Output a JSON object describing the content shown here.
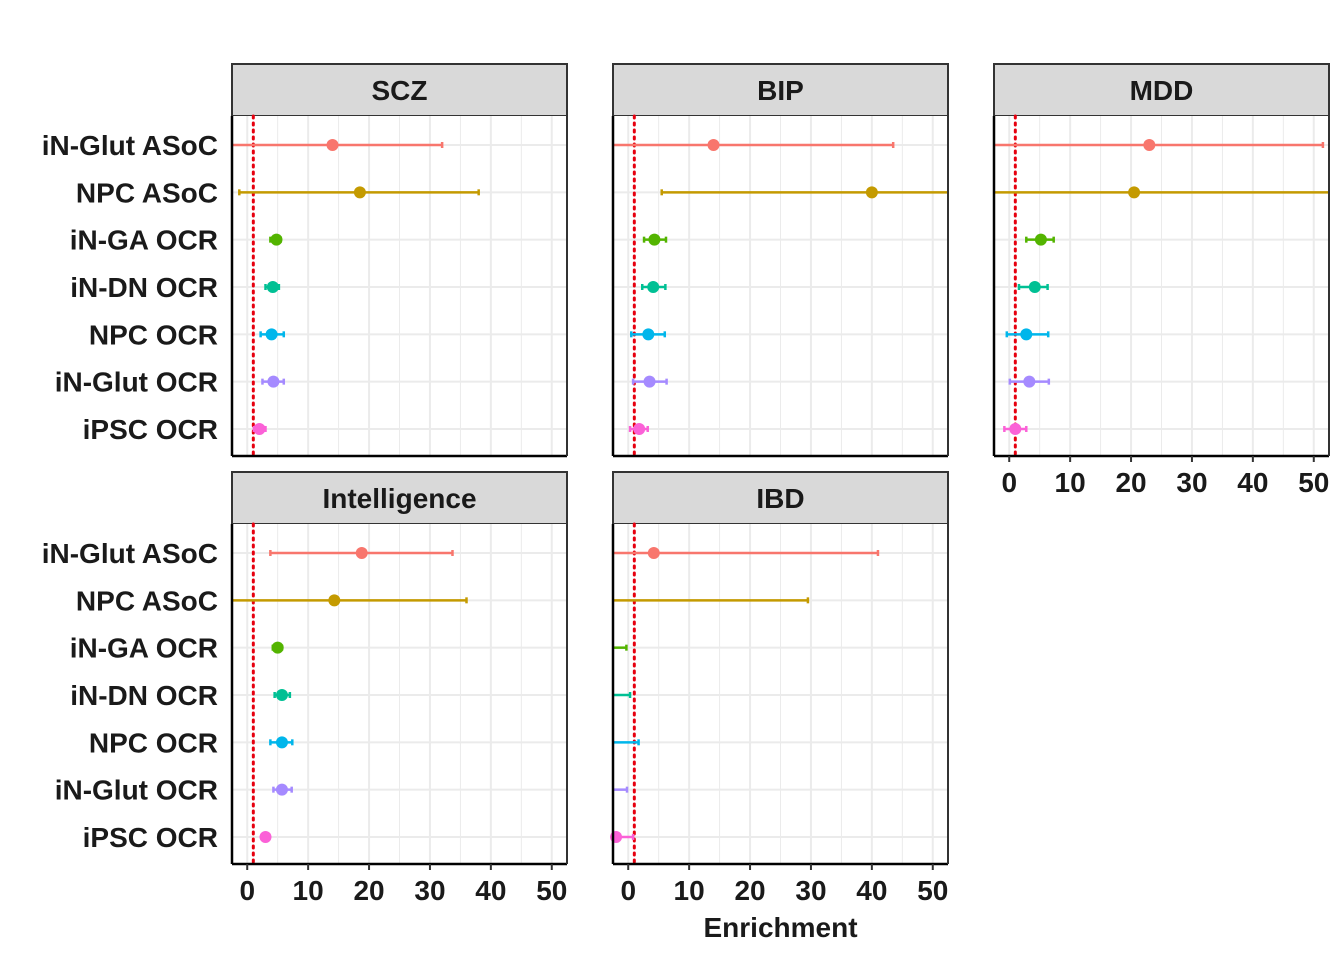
{
  "chart_data": {
    "type": "scatter",
    "subtype": "dot-with-error-bars, faceted",
    "xlabel": "Enrichment",
    "xlim": [
      -2.5,
      52.5
    ],
    "xticks": [
      0,
      10,
      20,
      30,
      40,
      50
    ],
    "reference_line": {
      "x": 1,
      "style": "dotted",
      "color": "#e6000f"
    },
    "grid": true,
    "categories": [
      "iN-Glut ASoC",
      "NPC ASoC",
      "iN-GA OCR",
      "iN-DN OCR",
      "NPC OCR",
      "iN-Glut OCR",
      "iPSC OCR"
    ],
    "category_colors": [
      "#F8766D",
      "#C49A00",
      "#53B400",
      "#00C094",
      "#00B6EB",
      "#A58AFF",
      "#FB61D7"
    ],
    "panels": [
      {
        "name": "SCZ",
        "estimate": [
          14,
          18.5,
          4.8,
          4.2,
          4,
          4.3,
          2
        ],
        "lower": [
          -2.5,
          -1.3,
          3.8,
          3,
          2.2,
          2.5,
          1.1
        ],
        "upper": [
          32,
          38,
          5.5,
          5.2,
          6,
          6,
          3
        ]
      },
      {
        "name": "BIP",
        "estimate": [
          14,
          40,
          4.3,
          4.1,
          3.3,
          3.5,
          1.8
        ],
        "lower": [
          -2.5,
          5.5,
          2.6,
          2.3,
          0.5,
          0.8,
          0.3
        ],
        "upper": [
          43.5,
          52.5,
          6.2,
          6.1,
          6,
          6.3,
          3.2
        ]
      },
      {
        "name": "MDD",
        "estimate": [
          23,
          20.5,
          5.2,
          4.2,
          2.8,
          3.3,
          1
        ],
        "lower": [
          -2.5,
          -2.5,
          2.8,
          1.6,
          -0.4,
          0.1,
          -0.8
        ],
        "upper": [
          51.5,
          52.5,
          7.3,
          6.3,
          6.4,
          6.5,
          2.8
        ]
      },
      {
        "name": "Intelligence",
        "estimate": [
          18.8,
          14.3,
          5,
          5.7,
          5.7,
          5.7,
          3
        ],
        "lower": [
          3.8,
          -2.5,
          4.2,
          4.5,
          3.8,
          4.3,
          2.5
        ],
        "upper": [
          33.7,
          36,
          5.7,
          7,
          7.4,
          7.3,
          3.6
        ]
      },
      {
        "name": "IBD",
        "estimate": [
          4.2,
          null,
          null,
          null,
          null,
          null,
          -2
        ],
        "lower": [
          -2.5,
          -2.5,
          -2.5,
          -2.5,
          -2.5,
          -2.5,
          -2.5
        ],
        "upper": [
          41,
          29.5,
          -0.3,
          0.3,
          1.7,
          -0.2,
          0.8
        ]
      }
    ]
  }
}
